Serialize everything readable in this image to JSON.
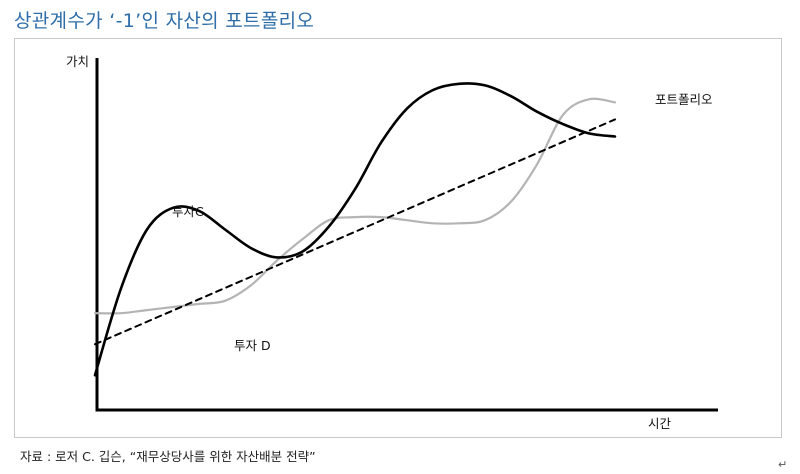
{
  "title": "상관계수가 ‘-1’인 자산의 포트폴리오",
  "source": "자료 : 로저 C. 깁슨, “재무상당사를 위한 자산배분 전략”",
  "return_mark": "↵",
  "colors": {
    "title": "#2e6da8",
    "investment_c": "#000000",
    "investment_d": "#b4b4b4",
    "portfolio": "#000000"
  },
  "chart_data": {
    "type": "line",
    "title": "상관계수가 ‘-1’인 자산의 포트폴리오",
    "xlabel": "시간",
    "ylabel": "가치",
    "xlim": [
      0,
      100
    ],
    "ylim": [
      0,
      100
    ],
    "grid": false,
    "x": [
      0,
      5,
      10,
      15,
      20,
      25,
      30,
      35,
      40,
      45,
      50,
      55,
      60,
      65,
      70,
      75,
      80,
      85,
      90,
      95,
      100
    ],
    "series": [
      {
        "name": "투자C",
        "style": "solid",
        "values": [
          8,
          36,
          55,
          62,
          61,
          55,
          49,
          46,
          48,
          56,
          68,
          83,
          94,
          100,
          102,
          101.5,
          98,
          93,
          89,
          86,
          85
        ]
      },
      {
        "name": "투자 D",
        "style": "solid",
        "values": [
          28,
          28,
          29,
          30,
          31,
          32,
          37,
          45,
          52,
          58,
          59,
          59,
          58,
          57,
          57,
          58,
          64,
          76,
          92,
          97,
          96
        ]
      },
      {
        "name": "포트폴리오",
        "style": "dashed",
        "values": [
          18,
          32,
          42,
          46,
          46,
          43.5,
          43,
          45.5,
          50,
          57,
          63.5,
          71,
          76,
          78.5,
          79.5,
          79.8,
          81,
          84.5,
          90.5,
          91.5,
          90.5
        ]
      }
    ]
  }
}
